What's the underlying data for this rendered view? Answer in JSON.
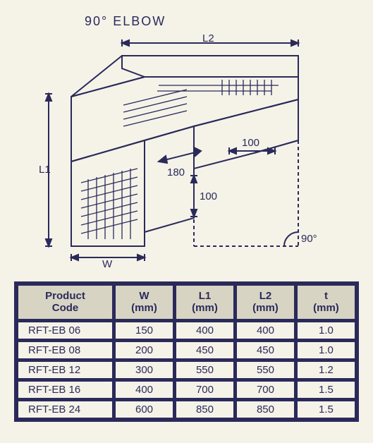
{
  "title": "90° ELBOW",
  "diagram": {
    "stroke": "#2a2a5a",
    "stroke_width": 2,
    "labels": {
      "L2": "L2",
      "L1": "L1",
      "W": "W",
      "d180": "180",
      "d100a": "100",
      "d100b": "100",
      "angle": "90°"
    },
    "font_size": 15
  },
  "table": {
    "columns": [
      {
        "label_line1": "Product",
        "label_line2": "Code",
        "key": "code",
        "class": "col-code"
      },
      {
        "label_line1": "W",
        "label_line2": "(mm)",
        "key": "w",
        "class": "col-n"
      },
      {
        "label_line1": "L1",
        "label_line2": "(mm)",
        "key": "l1",
        "class": "col-n"
      },
      {
        "label_line1": "L2",
        "label_line2": "(mm)",
        "key": "l2",
        "class": "col-n"
      },
      {
        "label_line1": "t",
        "label_line2": "(mm)",
        "key": "t",
        "class": "col-n"
      }
    ],
    "rows": [
      {
        "code": "RFT-EB 06",
        "w": "150",
        "l1": "400",
        "l2": "400",
        "t": "1.0"
      },
      {
        "code": "RFT-EB 08",
        "w": "200",
        "l1": "450",
        "l2": "450",
        "t": "1.0"
      },
      {
        "code": "RFT-EB 12",
        "w": "300",
        "l1": "550",
        "l2": "550",
        "t": "1.2"
      },
      {
        "code": "RFT-EB 16",
        "w": "400",
        "l1": "700",
        "l2": "700",
        "t": "1.5"
      },
      {
        "code": "RFT-EB 24",
        "w": "600",
        "l1": "850",
        "l2": "850",
        "t": "1.5"
      }
    ],
    "header_bg": "#d8d4c4",
    "cell_bg": "#f5f2e8",
    "border_color": "#2a2a5a"
  }
}
